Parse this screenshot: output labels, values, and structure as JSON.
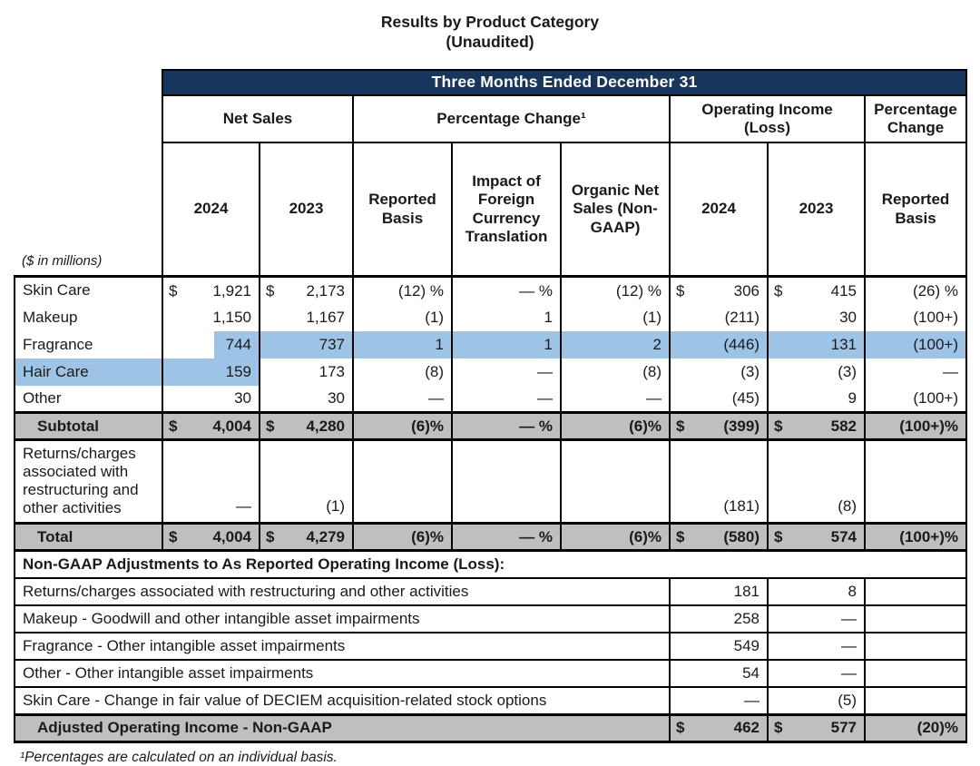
{
  "title": {
    "line1": "Results by Product Category",
    "line2": "(Unaudited)"
  },
  "colors": {
    "header_navy": "#17365d",
    "band_gray": "#bfbfbf",
    "highlight_blue": "#9dc3e6",
    "border": "#000000",
    "text": "#1a1a1a"
  },
  "table": {
    "period_header": "Three Months Ended December 31",
    "units_note": "($ in millions)",
    "groups": [
      {
        "label": "Net Sales",
        "span": 2
      },
      {
        "label": "Percentage Change¹",
        "span": 3
      },
      {
        "label": "Operating Income (Loss)",
        "span": 2
      },
      {
        "label": "Percentage Change",
        "span": 1
      }
    ],
    "columns": [
      "2024",
      "2023",
      "Reported Basis",
      "Impact of Foreign Currency Translation",
      "Organic Net Sales (Non-GAAP)",
      "2024",
      "2023",
      "Reported Basis"
    ],
    "rows": [
      {
        "type": "plain",
        "label": "Skin Care",
        "cells": [
          {
            "d": "$",
            "v": "1,921"
          },
          {
            "d": "$",
            "v": "2,173"
          },
          "(12) %",
          "— %",
          "(12) %",
          {
            "d": "$",
            "v": "306"
          },
          {
            "d": "$",
            "v": "415"
          },
          "(26) %"
        ]
      },
      {
        "type": "plain",
        "label": "Makeup",
        "cells": [
          "1,150",
          "1,167",
          "(1)",
          "1",
          "(1)",
          "(211)",
          "30",
          "(100+)"
        ]
      },
      {
        "type": "plain",
        "label": "Fragrance",
        "hl_partial": 0,
        "hl_cells": [
          1,
          2,
          3,
          4,
          5,
          6,
          7
        ],
        "cells": [
          "744",
          "737",
          "1",
          "1",
          "2",
          "(446)",
          "131",
          "(100+)"
        ]
      },
      {
        "type": "plain",
        "label": "Hair Care",
        "label_hl": true,
        "hl_cells": [
          0
        ],
        "cells": [
          "159",
          "173",
          "(8)",
          "—",
          "(8)",
          "(3)",
          "(3)",
          "—"
        ]
      },
      {
        "type": "plain",
        "label": "Other",
        "cells": [
          "30",
          "30",
          "—",
          "—",
          "—",
          "(45)",
          "9",
          "(100+)"
        ]
      },
      {
        "type": "band",
        "label": "Subtotal",
        "cells": [
          {
            "d": "$",
            "v": "4,004"
          },
          {
            "d": "$",
            "v": "4,280"
          },
          "(6)%",
          "— %",
          "(6)%",
          {
            "d": "$",
            "v": "(399)"
          },
          {
            "d": "$",
            "v": "582"
          },
          "(100+)%"
        ]
      },
      {
        "type": "tall",
        "label": "Returns/charges associated with restructuring and other activities",
        "cells": [
          "—",
          "(1)",
          "",
          "",
          "",
          "(181)",
          "(8)",
          ""
        ]
      },
      {
        "type": "band",
        "label": "Total",
        "cells": [
          {
            "d": "$",
            "v": "4,004"
          },
          {
            "d": "$",
            "v": "4,279"
          },
          "(6)%",
          "— %",
          "(6)%",
          {
            "d": "$",
            "v": "(580)"
          },
          {
            "d": "$",
            "v": "574"
          },
          "(100+)%"
        ]
      }
    ],
    "adjustments_header": "Non-GAAP Adjustments to As Reported Operating Income (Loss):",
    "adjustment_rows": [
      {
        "label": "Returns/charges associated with restructuring and other activities",
        "values": [
          "181",
          "8",
          ""
        ]
      },
      {
        "label": "Makeup - Goodwill and other intangible asset impairments",
        "values": [
          "258",
          "—",
          ""
        ]
      },
      {
        "label": "Fragrance - Other intangible asset impairments",
        "values": [
          "549",
          "—",
          ""
        ]
      },
      {
        "label": "Other - Other intangible asset impairments",
        "values": [
          "54",
          "—",
          ""
        ]
      },
      {
        "label": "Skin Care - Change in fair value of DECIEM acquisition-related stock options",
        "values": [
          "—",
          "(5)",
          ""
        ]
      }
    ],
    "adjusted_row": {
      "label": "Adjusted Operating Income - Non-GAAP",
      "cells": [
        {
          "d": "$",
          "v": "462"
        },
        {
          "d": "$",
          "v": "577"
        },
        "(20)%"
      ]
    }
  },
  "footnote": "¹Percentages are calculated on an individual basis."
}
